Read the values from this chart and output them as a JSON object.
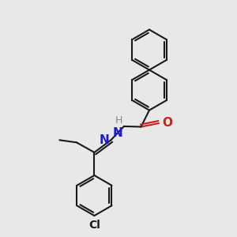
{
  "background_color": "#e8e8e8",
  "line_color": "#1a1a1a",
  "bond_lw": 1.5,
  "atom_colors": {
    "N": "#1c1ccc",
    "O": "#cc1c1c",
    "Cl": "#1a1a1a",
    "H": "#888888"
  },
  "font_size": 10,
  "ring_r": 0.85
}
